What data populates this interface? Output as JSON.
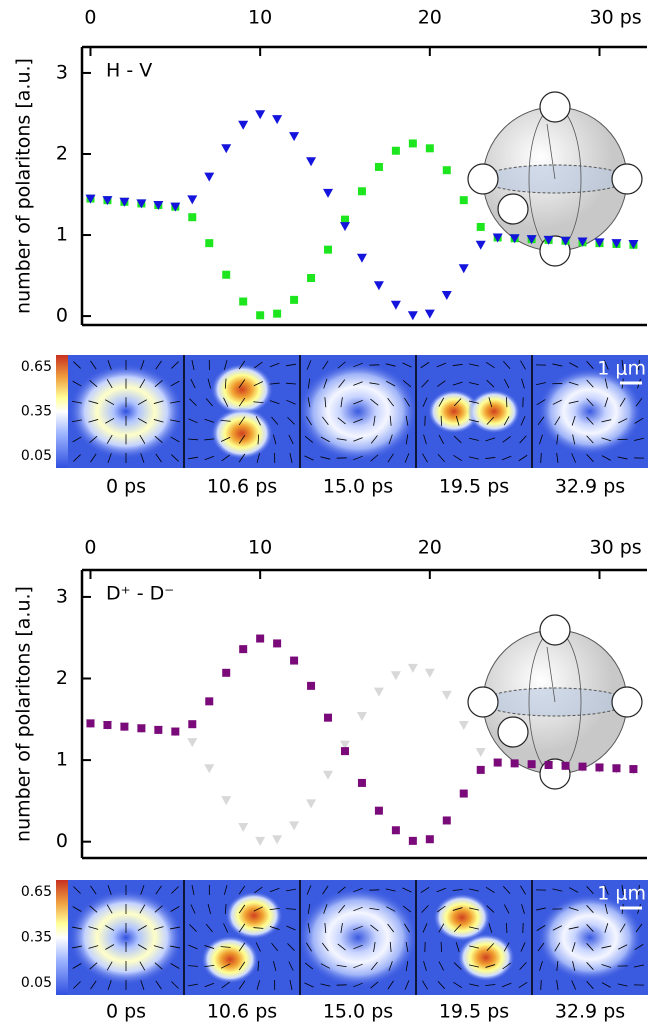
{
  "chart_data": [
    {
      "type": "scatter",
      "annotation": "H - V",
      "ylabel": "number of polaritons [a.u.]",
      "x": [
        0,
        1,
        2,
        3,
        4,
        5,
        6,
        7,
        8,
        9,
        10,
        11,
        12,
        13,
        14,
        15,
        16,
        17,
        18,
        19,
        20,
        21,
        22,
        23,
        24,
        25,
        26,
        27,
        28,
        29,
        30,
        31,
        32
      ],
      "series": [
        {
          "color": "#1ee61e",
          "marker": "square",
          "values": [
            1.45,
            1.43,
            1.41,
            1.39,
            1.37,
            1.35,
            1.22,
            0.9,
            0.51,
            0.18,
            0.01,
            0.03,
            0.2,
            0.47,
            0.82,
            1.19,
            1.54,
            1.84,
            2.04,
            2.13,
            2.07,
            1.8,
            1.43,
            1.1,
            0.97,
            0.96,
            0.95,
            0.94,
            0.93,
            0.91,
            0.9,
            0.89,
            0.88
          ]
        },
        {
          "color": "#1414dc",
          "marker": "triangle-down",
          "values": [
            1.45,
            1.43,
            1.41,
            1.39,
            1.37,
            1.35,
            1.44,
            1.72,
            2.07,
            2.36,
            2.49,
            2.43,
            2.22,
            1.91,
            1.52,
            1.11,
            0.72,
            0.38,
            0.14,
            0.01,
            0.03,
            0.26,
            0.59,
            0.88,
            0.97,
            0.96,
            0.95,
            0.94,
            0.93,
            0.92,
            0.91,
            0.9,
            0.89
          ]
        }
      ],
      "xlim": [
        -0.5,
        32.8
      ],
      "xticks": [
        0,
        10,
        20,
        {
          "value": 30,
          "label": "30 ps"
        }
      ],
      "ylim": [
        -0.11,
        3.32
      ],
      "yticks": [
        0,
        1,
        2,
        3
      ],
      "maps": {
        "colorbar_ticks": [
          0.65,
          0.35,
          0.05
        ],
        "scale_label": "1 μm",
        "times": [
          "0 ps",
          "10.6 ps",
          "15.0 ps",
          "19.5 ps",
          "32.9 ps"
        ]
      }
    },
    {
      "type": "scatter",
      "annotation": "D⁺ - D⁻",
      "ylabel": "number of polaritons [a.u.]",
      "x": [
        0,
        1,
        2,
        3,
        4,
        5,
        6,
        7,
        8,
        9,
        10,
        11,
        12,
        13,
        14,
        15,
        16,
        17,
        18,
        19,
        20,
        21,
        22,
        23,
        24,
        25,
        26,
        27,
        28,
        29,
        30,
        31,
        32
      ],
      "series": [
        {
          "color": "#d8d8d8",
          "marker": "triangle-down",
          "values": [
            1.45,
            1.43,
            1.41,
            1.39,
            1.37,
            1.35,
            1.22,
            0.9,
            0.51,
            0.18,
            0.01,
            0.03,
            0.2,
            0.47,
            0.82,
            1.19,
            1.54,
            1.84,
            2.04,
            2.13,
            2.07,
            1.8,
            1.43,
            1.1,
            0.97,
            0.96,
            0.95,
            0.94,
            0.93,
            0.91,
            0.9,
            0.89,
            0.88
          ]
        },
        {
          "color": "#7a0a7a",
          "marker": "square",
          "values": [
            1.45,
            1.43,
            1.41,
            1.39,
            1.37,
            1.35,
            1.44,
            1.72,
            2.07,
            2.36,
            2.49,
            2.43,
            2.22,
            1.91,
            1.52,
            1.11,
            0.72,
            0.38,
            0.14,
            0.01,
            0.03,
            0.26,
            0.59,
            0.88,
            0.97,
            0.96,
            0.95,
            0.94,
            0.93,
            0.92,
            0.91,
            0.9,
            0.89
          ]
        }
      ],
      "xlim": [
        -0.5,
        32.8
      ],
      "xticks": [
        0,
        10,
        20,
        {
          "value": 30,
          "label": "30 ps"
        }
      ],
      "ylim": [
        -0.2,
        3.33
      ],
      "yticks": [
        0,
        1,
        2,
        3
      ],
      "maps": {
        "colorbar_ticks": [
          0.65,
          0.35,
          0.05
        ],
        "scale_label": "1 μm",
        "times": [
          "0 ps",
          "10.6 ps",
          "15.0 ps",
          "19.5 ps",
          "32.9 ps"
        ]
      }
    }
  ]
}
